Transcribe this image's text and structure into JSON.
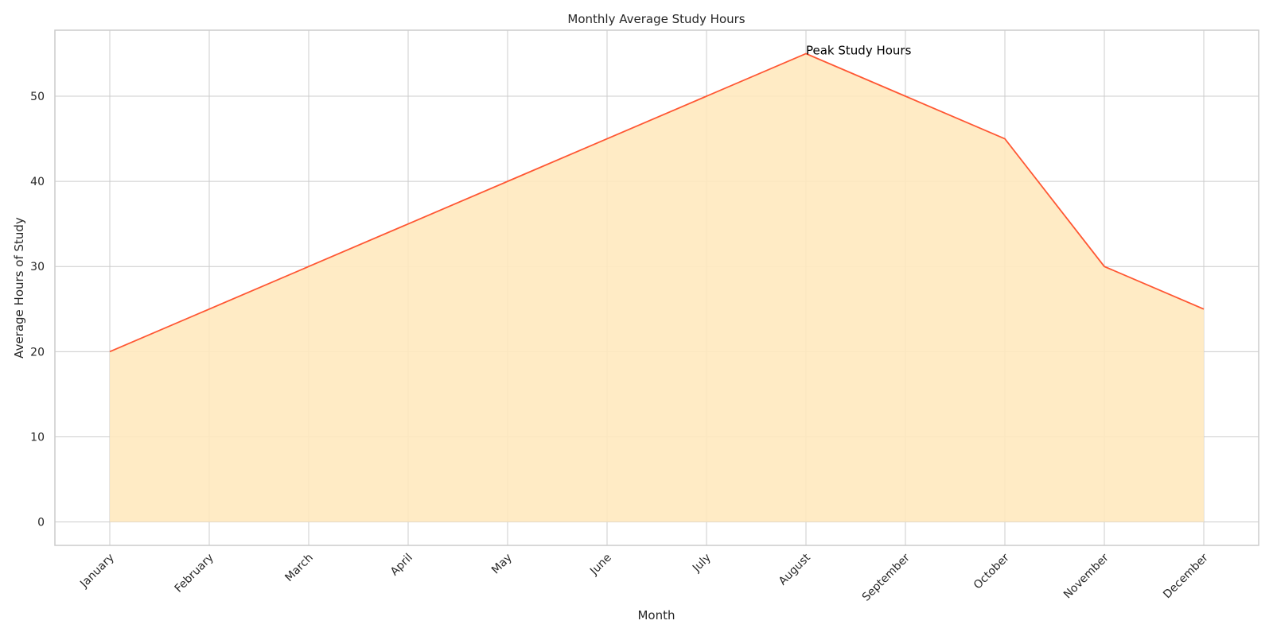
{
  "chart_data": {
    "type": "area",
    "title": "Monthly Average Study Hours",
    "xlabel": "Month",
    "ylabel": "Average Hours of Study",
    "categories": [
      "January",
      "February",
      "March",
      "April",
      "May",
      "June",
      "July",
      "August",
      "September",
      "October",
      "November",
      "December"
    ],
    "values": [
      20,
      25,
      30,
      35,
      40,
      45,
      50,
      55,
      50,
      45,
      30,
      25
    ],
    "ylim": [
      -2.75,
      57.75
    ],
    "yticks": [
      0,
      10,
      20,
      30,
      40,
      50
    ],
    "grid": true,
    "annotation": {
      "text": "Peak Study Hours",
      "category": "August",
      "value": 55
    },
    "colors": {
      "line": "#ff5733",
      "fill": "#ffe9bf",
      "grid": "#cccccc",
      "spine": "#cccccc"
    }
  }
}
